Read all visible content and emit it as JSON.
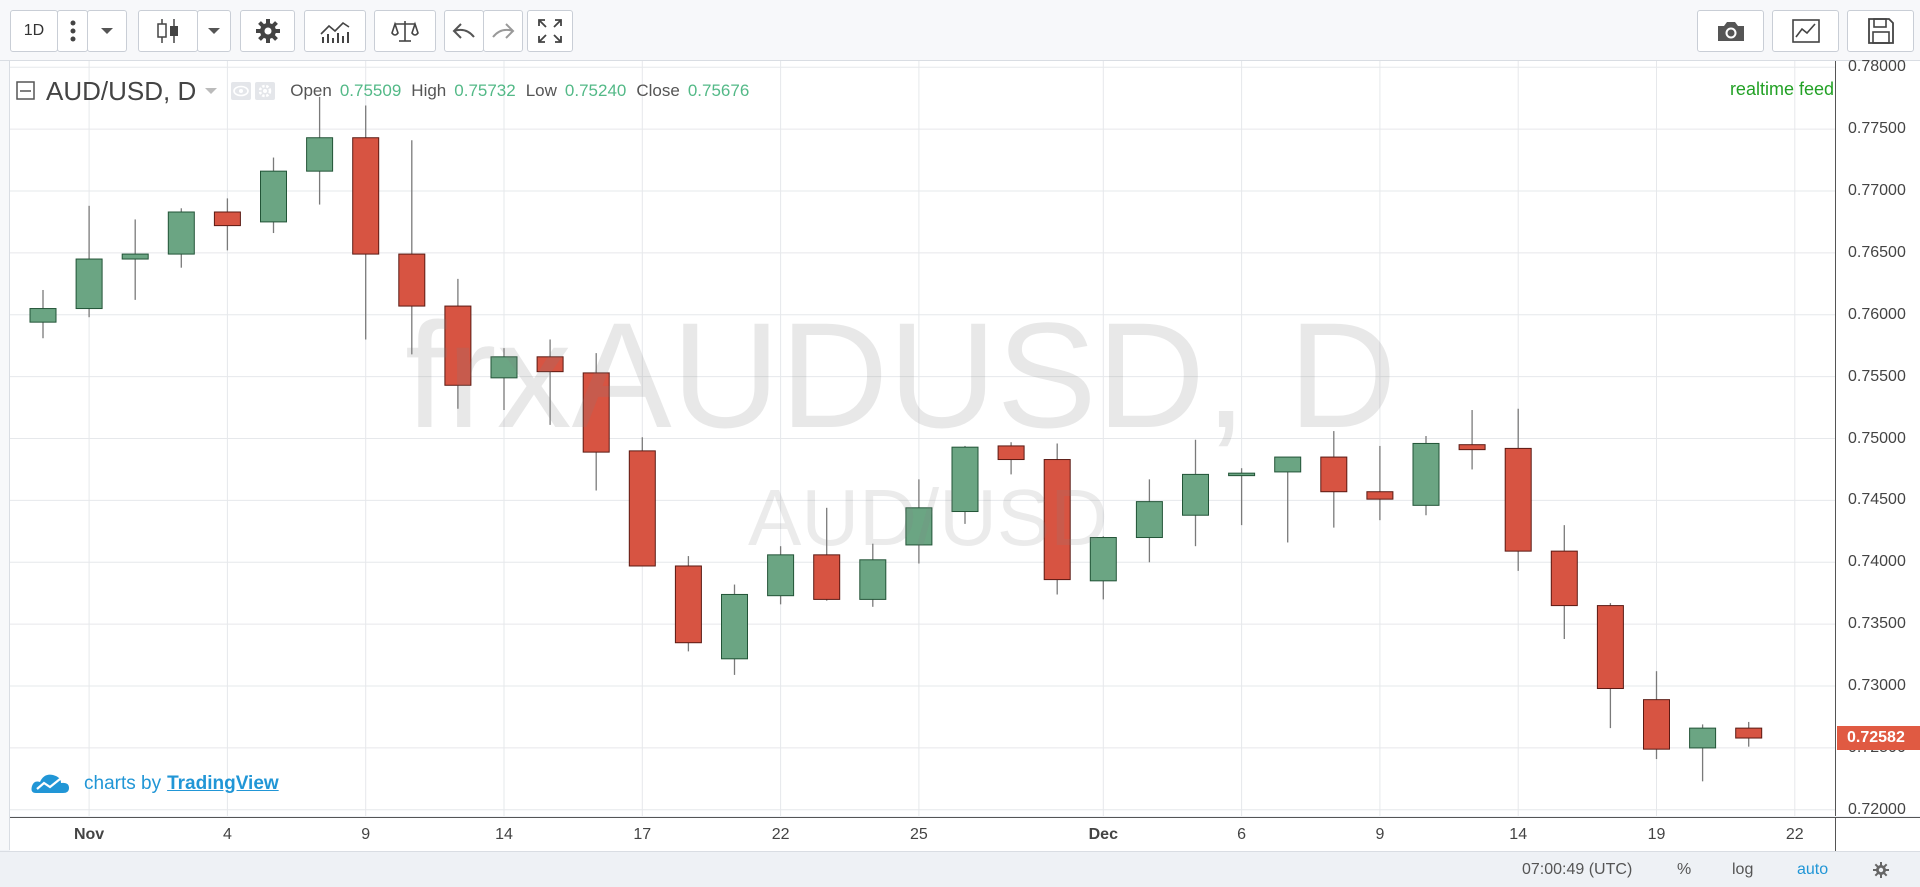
{
  "toolbar": {
    "interval_label": "1D",
    "icons": [
      "more-vertical-icon",
      "chevron-down-icon",
      "candlestick-icon",
      "chevron-down-icon",
      "settings-gear-icon",
      "indicators-icon",
      "compare-scale-icon",
      "undo-icon",
      "redo-icon",
      "fullscreen-icon",
      "camera-icon",
      "chart-template-icon",
      "save-icon"
    ]
  },
  "legend": {
    "symbol": "AUD/USD, D",
    "open_label": "Open",
    "open": "0.75509",
    "high_label": "High",
    "high": "0.75732",
    "low_label": "Low",
    "low": "0.75240",
    "close_label": "Close",
    "close": "0.75676"
  },
  "realtime_label": "realtime feed",
  "watermark": {
    "main": "frxAUDUSD, D",
    "sub": "AUD/USD"
  },
  "branding": {
    "prefix": "charts by",
    "link": "TradingView"
  },
  "last_price": "0.72582",
  "bottom_bar": {
    "time": "07:00:49 (UTC)",
    "percent": "%",
    "log": "log",
    "auto": "auto"
  },
  "colors": {
    "up": "#6ba583",
    "down": "#d75442",
    "up_wick": "#225437",
    "down_wick": "#5b1a13",
    "accent": "#2196d6",
    "realtime": "#22a125"
  },
  "chart_data": {
    "type": "candlestick",
    "ylim": [
      0.7195,
      0.7805
    ],
    "y_ticks": [
      "0.78000",
      "0.77500",
      "0.77000",
      "0.76500",
      "0.76000",
      "0.75500",
      "0.75000",
      "0.74500",
      "0.74000",
      "0.73500",
      "0.73000",
      "0.72500",
      "0.72000"
    ],
    "x_ticks": [
      {
        "label": "Nov",
        "index": 1
      },
      {
        "label": "4",
        "index": 4
      },
      {
        "label": "9",
        "index": 7
      },
      {
        "label": "14",
        "index": 10
      },
      {
        "label": "17",
        "index": 13
      },
      {
        "label": "22",
        "index": 16
      },
      {
        "label": "25",
        "index": 19
      },
      {
        "label": "Dec",
        "index": 23
      },
      {
        "label": "6",
        "index": 26
      },
      {
        "label": "9",
        "index": 29
      },
      {
        "label": "14",
        "index": 32
      },
      {
        "label": "19",
        "index": 35
      },
      {
        "label": "22",
        "index": 38
      }
    ],
    "candles": [
      {
        "o": 0.7594,
        "h": 0.762,
        "l": 0.7581,
        "c": 0.7605
      },
      {
        "o": 0.7605,
        "h": 0.7688,
        "l": 0.7598,
        "c": 0.7645
      },
      {
        "o": 0.7645,
        "h": 0.7677,
        "l": 0.7612,
        "c": 0.7649
      },
      {
        "o": 0.7649,
        "h": 0.7686,
        "l": 0.7638,
        "c": 0.7683
      },
      {
        "o": 0.7683,
        "h": 0.7694,
        "l": 0.7652,
        "c": 0.7672
      },
      {
        "o": 0.7675,
        "h": 0.7727,
        "l": 0.7666,
        "c": 0.7716
      },
      {
        "o": 0.7716,
        "h": 0.7776,
        "l": 0.7689,
        "c": 0.7743
      },
      {
        "o": 0.7743,
        "h": 0.7769,
        "l": 0.758,
        "c": 0.7649
      },
      {
        "o": 0.7649,
        "h": 0.7741,
        "l": 0.7568,
        "c": 0.7607
      },
      {
        "o": 0.7607,
        "h": 0.7629,
        "l": 0.7524,
        "c": 0.7543
      },
      {
        "o": 0.7549,
        "h": 0.7573,
        "l": 0.7523,
        "c": 0.7566
      },
      {
        "o": 0.7566,
        "h": 0.758,
        "l": 0.7511,
        "c": 0.7554
      },
      {
        "o": 0.7553,
        "h": 0.7569,
        "l": 0.7458,
        "c": 0.7489
      },
      {
        "o": 0.749,
        "h": 0.7501,
        "l": 0.7397,
        "c": 0.7397
      },
      {
        "o": 0.7397,
        "h": 0.7405,
        "l": 0.7328,
        "c": 0.7335
      },
      {
        "o": 0.7322,
        "h": 0.7382,
        "l": 0.7309,
        "c": 0.7374
      },
      {
        "o": 0.7373,
        "h": 0.7413,
        "l": 0.7366,
        "c": 0.7406
      },
      {
        "o": 0.7406,
        "h": 0.7444,
        "l": 0.7369,
        "c": 0.737
      },
      {
        "o": 0.737,
        "h": 0.7415,
        "l": 0.7364,
        "c": 0.7402
      },
      {
        "o": 0.7414,
        "h": 0.7467,
        "l": 0.7399,
        "c": 0.7444
      },
      {
        "o": 0.7441,
        "h": 0.7494,
        "l": 0.7431,
        "c": 0.7493
      },
      {
        "o": 0.7494,
        "h": 0.7497,
        "l": 0.7471,
        "c": 0.7483
      },
      {
        "o": 0.7483,
        "h": 0.7496,
        "l": 0.7374,
        "c": 0.7386
      },
      {
        "o": 0.7385,
        "h": 0.7421,
        "l": 0.737,
        "c": 0.742
      },
      {
        "o": 0.742,
        "h": 0.7467,
        "l": 0.74,
        "c": 0.7449
      },
      {
        "o": 0.7438,
        "h": 0.7499,
        "l": 0.7413,
        "c": 0.7471
      },
      {
        "o": 0.747,
        "h": 0.7476,
        "l": 0.743,
        "c": 0.7472
      },
      {
        "o": 0.7473,
        "h": 0.7485,
        "l": 0.7416,
        "c": 0.7485
      },
      {
        "o": 0.7485,
        "h": 0.7506,
        "l": 0.7428,
        "c": 0.7457
      },
      {
        "o": 0.7457,
        "h": 0.7494,
        "l": 0.7434,
        "c": 0.7451
      },
      {
        "o": 0.7446,
        "h": 0.7502,
        "l": 0.7438,
        "c": 0.7496
      },
      {
        "o": 0.7495,
        "h": 0.7523,
        "l": 0.7475,
        "c": 0.7491
      },
      {
        "o": 0.7492,
        "h": 0.7524,
        "l": 0.7393,
        "c": 0.7409
      },
      {
        "o": 0.7409,
        "h": 0.743,
        "l": 0.7338,
        "c": 0.7365
      },
      {
        "o": 0.7365,
        "h": 0.7367,
        "l": 0.7266,
        "c": 0.7298
      },
      {
        "o": 0.7289,
        "h": 0.7312,
        "l": 0.7241,
        "c": 0.7249
      },
      {
        "o": 0.725,
        "h": 0.7269,
        "l": 0.7223,
        "c": 0.7266
      },
      {
        "o": 0.7266,
        "h": 0.7271,
        "l": 0.7251,
        "c": 0.7258
      }
    ]
  }
}
